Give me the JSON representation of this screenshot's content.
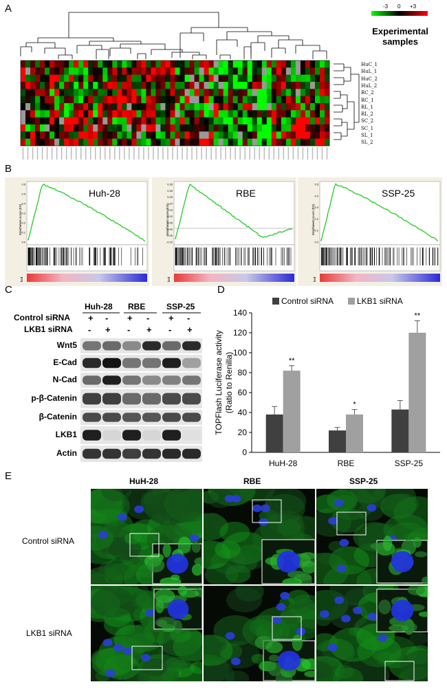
{
  "panels": {
    "a": {
      "letter": "A",
      "colorbar": {
        "min": "-3",
        "mid": "0",
        "max": "+3",
        "low_color": "#00ff00",
        "mid_color": "#000000",
        "high_color": "#ff0000"
      },
      "legend_title_line1": "Experimental",
      "legend_title_line2": "samples",
      "samples": [
        "HuC_1",
        "HuL_1",
        "HuC_2",
        "HuL_2",
        "RC_2",
        "RC_1",
        "RL_1",
        "RL_2",
        "SC_2",
        "SC_1",
        "SL_1",
        "SL_2"
      ]
    },
    "b": {
      "letter": "B",
      "gsea": [
        {
          "title": "Huh-28",
          "yticks": [
            "0.6",
            "0.5",
            "0.4",
            "0.3",
            "0.2",
            "0.1",
            "0.0"
          ]
        },
        {
          "title": "RBE",
          "yticks": [
            "0.35",
            "0.30",
            "0.25",
            "0.20",
            "0.15",
            "0.10",
            "0.05",
            "0.00",
            "-0.05",
            "-0.10"
          ]
        },
        {
          "title": "SSP-25",
          "yticks": [
            "0.5",
            "0.4",
            "0.3",
            "0.2",
            "0.1",
            "0.0"
          ]
        }
      ],
      "ylabel": "Enrichment score (ES)",
      "ranked_label": "ked"
    },
    "c": {
      "letter": "C",
      "cell_lines": [
        "Huh-28",
        "RBE",
        "SSP-25"
      ],
      "rows": [
        {
          "label": "Control siRNA",
          "marks": [
            "+",
            "-",
            "+",
            "-",
            "+",
            "-"
          ]
        },
        {
          "label": "LKB1 siRNA",
          "marks": [
            "-",
            "+",
            "-",
            "+",
            "-",
            "+"
          ]
        }
      ],
      "blots": [
        "Wnt5",
        "E-Cad",
        "N-Cad",
        "p-β-Catenin",
        "β-Catenin",
        "LKB1",
        "Actin"
      ]
    },
    "d": {
      "letter": "D",
      "significance": [
        "**",
        "*",
        "**"
      ]
    },
    "e": {
      "letter": "E",
      "columns": [
        "HuH-28",
        "RBE",
        "SSP-25"
      ],
      "rows": [
        "Control siRNA",
        "LKB1 siRNA"
      ]
    }
  },
  "chart_data": {
    "type": "bar",
    "categories": [
      "HuH-28",
      "RBE",
      "SSP-25"
    ],
    "series": [
      {
        "name": "Control siRNA",
        "values": [
          38,
          22,
          43
        ],
        "errors": [
          8,
          3,
          9
        ],
        "color": "#404040"
      },
      {
        "name": "LKB1 siRNA",
        "values": [
          82,
          38,
          120
        ],
        "errors": [
          5,
          5,
          12
        ],
        "color": "#a0a0a0"
      }
    ],
    "ylabel": "TOPFlash Luciferase activity (Ratio to Renilla)",
    "yticks": [
      "0",
      "20",
      "40",
      "60",
      "80",
      "100",
      "120",
      "140"
    ],
    "ylim": [
      0,
      140
    ],
    "legend": "top"
  }
}
